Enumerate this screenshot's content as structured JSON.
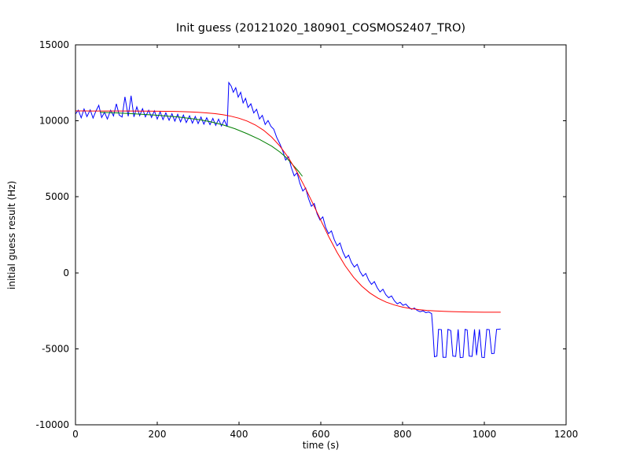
{
  "figure": {
    "background": "#ffffff",
    "axes_color": "#000000"
  },
  "chart_data": {
    "type": "line",
    "title": "Init guess (20121020_180901_COSMOS2407_TRO)",
    "xlabel": "time (s)",
    "ylabel": "initial guess result (Hz)",
    "xlim": [
      0,
      1200
    ],
    "ylim": [
      -10000,
      15000
    ],
    "xticks": [
      0,
      200,
      400,
      600,
      800,
      1000,
      1200
    ],
    "xtick_labels": [
      "0",
      "200",
      "400",
      "600",
      "800",
      "1000",
      "1200"
    ],
    "yticks": [
      -10000,
      -5000,
      0,
      5000,
      10000,
      15000
    ],
    "ytick_labels": [
      "-10000",
      "-5000",
      "0",
      "5000",
      "10000",
      "15000"
    ],
    "grid": false,
    "legend": "none",
    "series": [
      {
        "name": "initial-guess-data",
        "color": "#0000ff",
        "line_width": 1,
        "points": [
          [
            0,
            10450
          ],
          [
            7,
            10700
          ],
          [
            14,
            10200
          ],
          [
            21,
            10780
          ],
          [
            28,
            10280
          ],
          [
            36,
            10720
          ],
          [
            43,
            10180
          ],
          [
            50,
            10640
          ],
          [
            57,
            11020
          ],
          [
            64,
            10220
          ],
          [
            71,
            10560
          ],
          [
            78,
            10120
          ],
          [
            86,
            10700
          ],
          [
            93,
            10320
          ],
          [
            100,
            11120
          ],
          [
            107,
            10380
          ],
          [
            114,
            10250
          ],
          [
            121,
            11580
          ],
          [
            129,
            10300
          ],
          [
            136,
            11650
          ],
          [
            143,
            10260
          ],
          [
            150,
            10920
          ],
          [
            157,
            10340
          ],
          [
            164,
            10800
          ],
          [
            171,
            10260
          ],
          [
            179,
            10700
          ],
          [
            186,
            10220
          ],
          [
            193,
            10660
          ],
          [
            200,
            10120
          ],
          [
            207,
            10600
          ],
          [
            214,
            10080
          ],
          [
            221,
            10520
          ],
          [
            229,
            10040
          ],
          [
            236,
            10470
          ],
          [
            243,
            9980
          ],
          [
            250,
            10430
          ],
          [
            257,
            9930
          ],
          [
            264,
            10380
          ],
          [
            271,
            9890
          ],
          [
            279,
            10330
          ],
          [
            286,
            9850
          ],
          [
            293,
            10290
          ],
          [
            300,
            9820
          ],
          [
            307,
            10250
          ],
          [
            314,
            9780
          ],
          [
            321,
            10200
          ],
          [
            329,
            9750
          ],
          [
            336,
            10160
          ],
          [
            343,
            9700
          ],
          [
            350,
            10110
          ],
          [
            357,
            9660
          ],
          [
            364,
            10060
          ],
          [
            371,
            9620
          ],
          [
            375,
            12520
          ],
          [
            381,
            12280
          ],
          [
            386,
            11880
          ],
          [
            392,
            12180
          ],
          [
            398,
            11560
          ],
          [
            404,
            11880
          ],
          [
            410,
            11180
          ],
          [
            416,
            11480
          ],
          [
            422,
            10880
          ],
          [
            429,
            11120
          ],
          [
            436,
            10520
          ],
          [
            443,
            10760
          ],
          [
            450,
            10120
          ],
          [
            457,
            10360
          ],
          [
            464,
            9760
          ],
          [
            471,
            10020
          ],
          [
            478,
            9640
          ],
          [
            485,
            9450
          ],
          [
            492,
            8920
          ],
          [
            500,
            8480
          ],
          [
            507,
            8020
          ],
          [
            514,
            7420
          ],
          [
            521,
            7640
          ],
          [
            528,
            6920
          ],
          [
            535,
            6380
          ],
          [
            542,
            6580
          ],
          [
            549,
            5880
          ],
          [
            556,
            5380
          ],
          [
            563,
            5580
          ],
          [
            570,
            4880
          ],
          [
            577,
            4380
          ],
          [
            584,
            4560
          ],
          [
            591,
            3880
          ],
          [
            598,
            3480
          ],
          [
            605,
            3680
          ],
          [
            612,
            2980
          ],
          [
            619,
            2580
          ],
          [
            626,
            2760
          ],
          [
            633,
            2180
          ],
          [
            640,
            1780
          ],
          [
            647,
            1960
          ],
          [
            654,
            1380
          ],
          [
            661,
            980
          ],
          [
            668,
            1160
          ],
          [
            675,
            680
          ],
          [
            682,
            380
          ],
          [
            689,
            560
          ],
          [
            696,
            80
          ],
          [
            703,
            -220
          ],
          [
            710,
            -40
          ],
          [
            717,
            -480
          ],
          [
            724,
            -760
          ],
          [
            731,
            -580
          ],
          [
            738,
            -980
          ],
          [
            745,
            -1260
          ],
          [
            752,
            -1080
          ],
          [
            759,
            -1440
          ],
          [
            766,
            -1640
          ],
          [
            773,
            -1520
          ],
          [
            780,
            -1840
          ],
          [
            787,
            -2040
          ],
          [
            794,
            -1940
          ],
          [
            801,
            -2140
          ],
          [
            808,
            -2060
          ],
          [
            815,
            -2260
          ],
          [
            822,
            -2400
          ],
          [
            829,
            -2320
          ],
          [
            836,
            -2480
          ],
          [
            843,
            -2560
          ],
          [
            850,
            -2500
          ],
          [
            857,
            -2620
          ],
          [
            864,
            -2580
          ],
          [
            871,
            -2680
          ],
          [
            874,
            -3720
          ],
          [
            878,
            -5520
          ],
          [
            884,
            -5480
          ],
          [
            888,
            -3720
          ],
          [
            895,
            -3740
          ],
          [
            899,
            -5560
          ],
          [
            906,
            -5560
          ],
          [
            911,
            -3720
          ],
          [
            918,
            -3800
          ],
          [
            923,
            -5480
          ],
          [
            930,
            -5500
          ],
          [
            936,
            -3720
          ],
          [
            941,
            -5580
          ],
          [
            948,
            -5560
          ],
          [
            953,
            -3720
          ],
          [
            958,
            -3760
          ],
          [
            963,
            -5480
          ],
          [
            970,
            -5500
          ],
          [
            976,
            -3720
          ],
          [
            981,
            -5420
          ],
          [
            988,
            -3720
          ],
          [
            994,
            -5560
          ],
          [
            1000,
            -5580
          ],
          [
            1006,
            -3720
          ],
          [
            1012,
            -3740
          ],
          [
            1018,
            -5320
          ],
          [
            1024,
            -5300
          ],
          [
            1030,
            -3720
          ],
          [
            1040,
            -3700
          ]
        ]
      },
      {
        "name": "model-fit-green",
        "color": "#007f00",
        "line_width": 1,
        "points": [
          [
            60,
            10560
          ],
          [
            100,
            10520
          ],
          [
            150,
            10450
          ],
          [
            200,
            10370
          ],
          [
            250,
            10260
          ],
          [
            300,
            10090
          ],
          [
            330,
            9940
          ],
          [
            360,
            9740
          ],
          [
            390,
            9480
          ],
          [
            420,
            9150
          ],
          [
            450,
            8780
          ],
          [
            480,
            8330
          ],
          [
            500,
            7950
          ],
          [
            515,
            7600
          ],
          [
            530,
            7150
          ],
          [
            545,
            6700
          ],
          [
            555,
            6350
          ]
        ]
      },
      {
        "name": "model-fit-red",
        "color": "#ff0000",
        "line_width": 1,
        "points": [
          [
            0,
            10649
          ],
          [
            20,
            10649
          ],
          [
            40,
            10648
          ],
          [
            60,
            10648
          ],
          [
            80,
            10647
          ],
          [
            100,
            10646
          ],
          [
            120,
            10645
          ],
          [
            140,
            10643
          ],
          [
            160,
            10641
          ],
          [
            180,
            10639
          ],
          [
            200,
            10634
          ],
          [
            220,
            10627
          ],
          [
            240,
            10618
          ],
          [
            260,
            10605
          ],
          [
            280,
            10587
          ],
          [
            300,
            10561
          ],
          [
            320,
            10525
          ],
          [
            340,
            10475
          ],
          [
            360,
            10404
          ],
          [
            380,
            10306
          ],
          [
            400,
            10170
          ],
          [
            420,
            9982
          ],
          [
            440,
            9726
          ],
          [
            460,
            9382
          ],
          [
            480,
            8926
          ],
          [
            500,
            8339
          ],
          [
            520,
            7606
          ],
          [
            540,
            6722
          ],
          [
            560,
            5700
          ],
          [
            580,
            4594
          ],
          [
            590,
            4025
          ],
          [
            600,
            3456
          ],
          [
            620,
            2351
          ],
          [
            640,
            1334
          ],
          [
            660,
            450
          ],
          [
            680,
            -284
          ],
          [
            700,
            -871
          ],
          [
            720,
            -1327
          ],
          [
            740,
            -1672
          ],
          [
            760,
            -1929
          ],
          [
            780,
            -2117
          ],
          [
            800,
            -2254
          ],
          [
            820,
            -2354
          ],
          [
            840,
            -2424
          ],
          [
            860,
            -2475
          ],
          [
            880,
            -2511
          ],
          [
            900,
            -2537
          ],
          [
            920,
            -2555
          ],
          [
            940,
            -2568
          ],
          [
            960,
            -2578
          ],
          [
            980,
            -2584
          ],
          [
            1000,
            -2589
          ],
          [
            1020,
            -2592
          ],
          [
            1040,
            -2594
          ]
        ]
      }
    ]
  }
}
